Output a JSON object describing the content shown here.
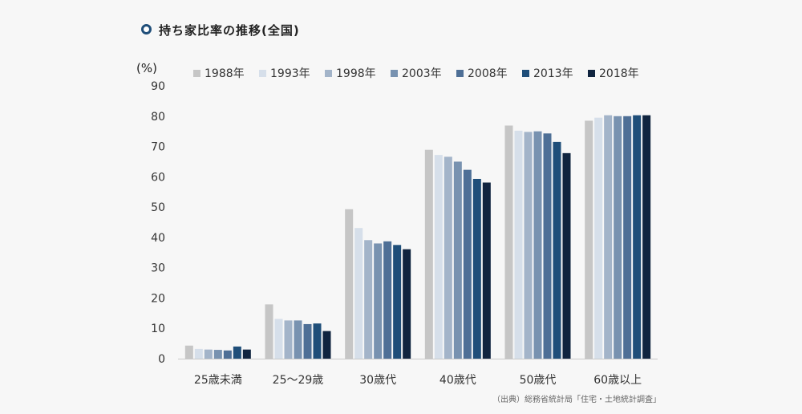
{
  "title": "持ち家比率の推移(全国)",
  "source": "（出典）総務省統計局「住宅・土地統計調査」",
  "chart_data": {
    "type": "bar",
    "title": "持ち家比率の推移(全国)",
    "ylabel": "(%)",
    "xlabel": "",
    "ylim": [
      0,
      90
    ],
    "yticks": [
      0,
      10,
      20,
      30,
      40,
      50,
      60,
      70,
      80,
      90
    ],
    "grid": false,
    "legend": "top",
    "categories": [
      "25歳未満",
      "25〜29歳",
      "30歳代",
      "40歳代",
      "50歳代",
      "60歳以上"
    ],
    "series": [
      {
        "name": "1988年",
        "color": "#c6c6c6",
        "values": [
          4.3,
          17.9,
          49.3,
          68.9,
          76.9,
          78.5
        ]
      },
      {
        "name": "1993年",
        "color": "#d6dfea",
        "values": [
          3.2,
          13.1,
          43.1,
          67.2,
          75.2,
          79.5
        ]
      },
      {
        "name": "1998年",
        "color": "#a3b4c9",
        "values": [
          3.0,
          12.6,
          39.1,
          66.6,
          74.8,
          80.3
        ]
      },
      {
        "name": "2003年",
        "color": "#7892b0",
        "values": [
          2.9,
          12.6,
          38.0,
          65.0,
          75.0,
          80.0
        ]
      },
      {
        "name": "2008年",
        "color": "#4e6f96",
        "values": [
          2.7,
          11.4,
          38.7,
          62.3,
          74.3,
          80.0
        ]
      },
      {
        "name": "2013年",
        "color": "#1f4e79",
        "values": [
          4.0,
          11.6,
          37.5,
          59.3,
          71.5,
          80.3
        ]
      },
      {
        "name": "2018年",
        "color": "#10243f",
        "values": [
          3.0,
          9.1,
          36.1,
          58.1,
          67.8,
          80.3
        ]
      }
    ]
  }
}
